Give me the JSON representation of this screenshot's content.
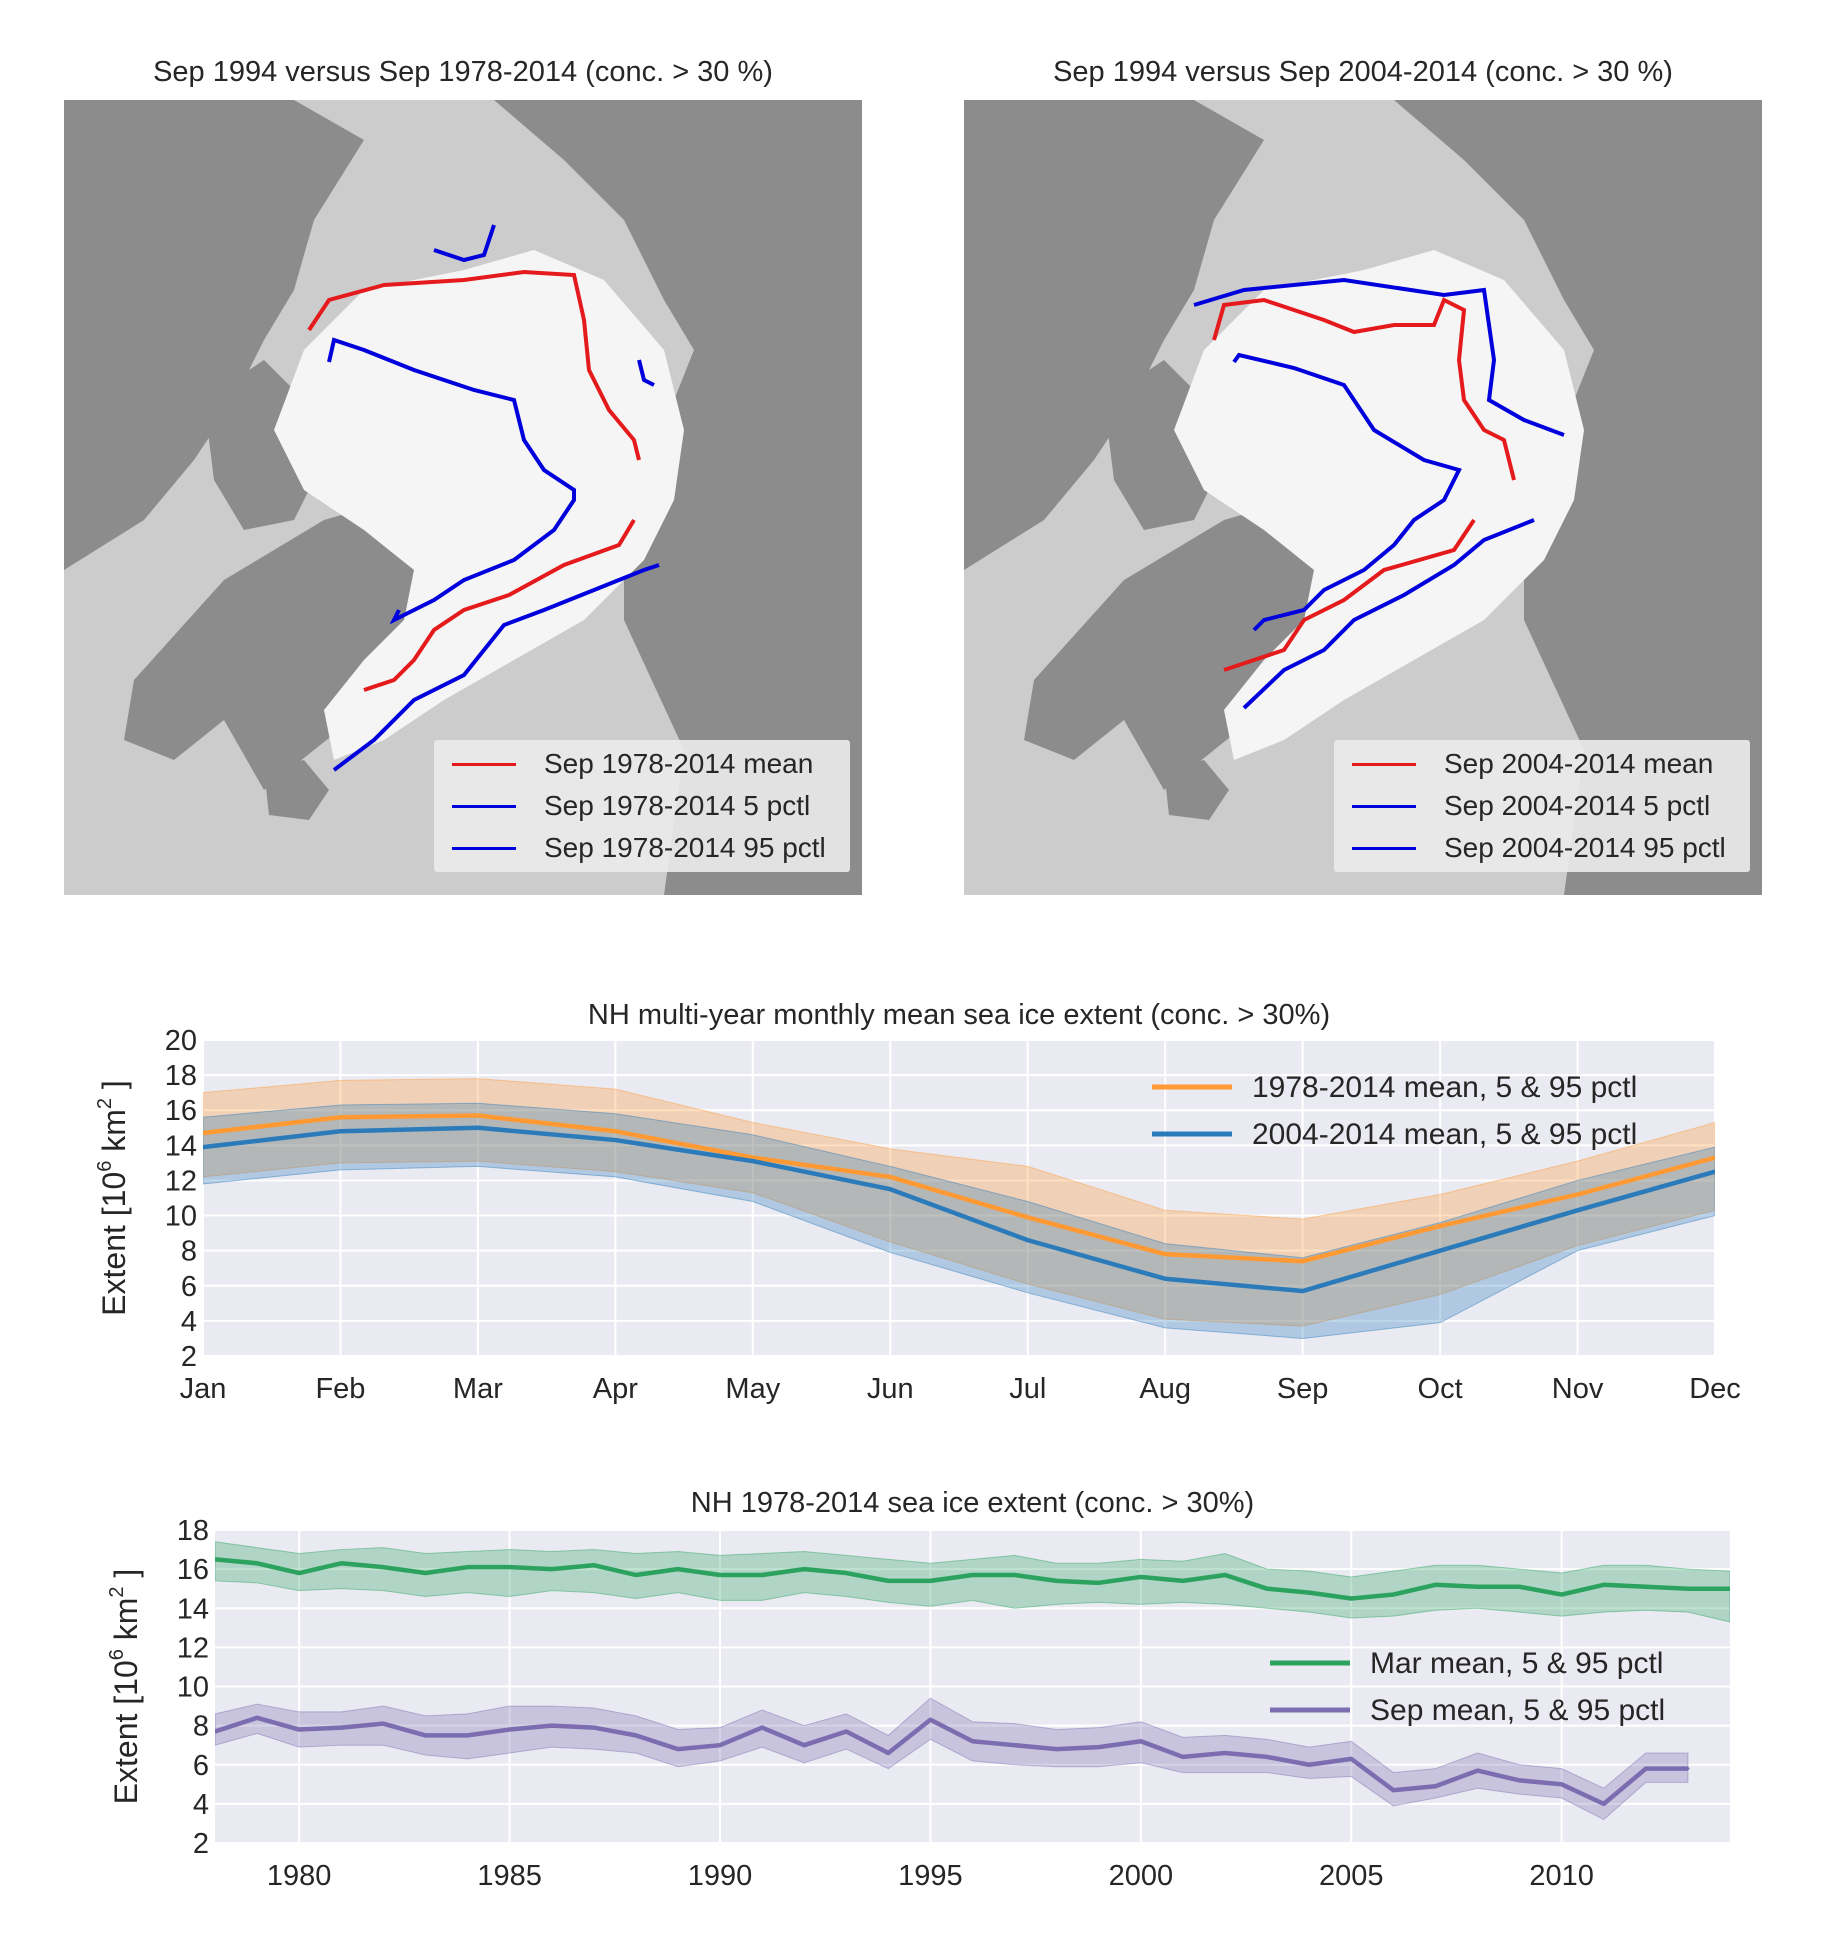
{
  "maps": [
    {
      "title": "Sep 1994 versus Sep 1978-2014 (conc. > 30 %)",
      "legend": [
        {
          "label": "Sep 1978-2014 mean",
          "color": "#e41a1c"
        },
        {
          "label": "Sep 1978-2014 5 pctl",
          "color": "#0000dd"
        },
        {
          "label": "Sep 1978-2014 95 pctl",
          "color": "#0000dd"
        }
      ]
    },
    {
      "title": "Sep 1994 versus Sep 2004-2014 (conc. > 30 %)",
      "legend": [
        {
          "label": "Sep 2004-2014 mean",
          "color": "#e41a1c"
        },
        {
          "label": "Sep 2004-2014 5 pctl",
          "color": "#0000dd"
        },
        {
          "label": "Sep 2004-2014 95 pctl",
          "color": "#0000dd"
        }
      ]
    }
  ],
  "chart_data": [
    {
      "type": "line",
      "title": "NH multi-year monthly mean sea ice extent (conc. > 30%)",
      "ylabel": "Extent [10^6 km^2 ]",
      "ylabel_parts": {
        "pre": "Extent [10",
        "exp1": "6",
        "mid": " km",
        "exp2": "2",
        "post": " ]"
      },
      "ylim": [
        2,
        20
      ],
      "yticks": [
        2,
        4,
        6,
        8,
        10,
        12,
        14,
        16,
        18,
        20
      ],
      "categories": [
        "Jan",
        "Feb",
        "Mar",
        "Apr",
        "May",
        "Jun",
        "Jul",
        "Aug",
        "Sep",
        "Oct",
        "Nov",
        "Dec"
      ],
      "grid": true,
      "legend_position": "top-right",
      "series": [
        {
          "name": "1978-2014 mean, 5 & 95 pctl",
          "color": "#ff9933",
          "values": [
            14.7,
            15.6,
            15.7,
            14.8,
            13.3,
            12.2,
            9.9,
            7.8,
            7.4,
            9.4,
            11.2,
            13.3
          ],
          "p5": [
            12.2,
            13.0,
            13.1,
            12.5,
            11.3,
            8.5,
            6.1,
            4.1,
            3.7,
            5.5,
            8.3,
            10.3
          ],
          "p95": [
            17.0,
            17.7,
            17.8,
            17.2,
            15.3,
            13.8,
            12.8,
            10.3,
            9.8,
            11.2,
            13.1,
            15.3
          ]
        },
        {
          "name": "2004-2014 mean, 5 & 95 pctl",
          "color": "#2b7bba",
          "values": [
            13.9,
            14.8,
            15.0,
            14.3,
            13.1,
            11.5,
            8.6,
            6.4,
            5.7,
            8.0,
            10.3,
            12.5
          ],
          "p5": [
            11.8,
            12.6,
            12.8,
            12.2,
            10.8,
            7.9,
            5.6,
            3.6,
            3.0,
            3.9,
            8.0,
            10.0
          ],
          "p95": [
            15.6,
            16.3,
            16.4,
            15.8,
            14.6,
            12.8,
            10.8,
            8.4,
            7.6,
            9.6,
            12.0,
            13.9
          ]
        }
      ]
    },
    {
      "type": "line",
      "title": "NH 1978-2014 sea ice extent (conc. > 30%)",
      "ylabel": "Extent [10^6 km^2 ]",
      "ylabel_parts": {
        "pre": "Extent [10",
        "exp1": "6",
        "mid": " km",
        "exp2": "2",
        "post": " ]"
      },
      "ylim": [
        2,
        18
      ],
      "yticks": [
        2,
        4,
        6,
        8,
        10,
        12,
        14,
        16,
        18
      ],
      "xlim": [
        1978,
        2014
      ],
      "xticks": [
        1980,
        1985,
        1990,
        1995,
        2000,
        2005,
        2010
      ],
      "grid": true,
      "legend_position": "center-right",
      "x": [
        1979,
        1980,
        1981,
        1982,
        1983,
        1984,
        1985,
        1986,
        1987,
        1988,
        1989,
        1990,
        1991,
        1992,
        1993,
        1994,
        1995,
        1996,
        1997,
        1998,
        1999,
        2000,
        2001,
        2002,
        2003,
        2004,
        2005,
        2006,
        2007,
        2008,
        2009,
        2010,
        2011,
        2012,
        2013
      ],
      "series": [
        {
          "name": "Mar mean, 5 & 95 pctl",
          "color": "#2ca25f",
          "x": [
            1978,
            1979,
            1980,
            1981,
            1982,
            1983,
            1984,
            1985,
            1986,
            1987,
            1988,
            1989,
            1990,
            1991,
            1992,
            1993,
            1994,
            1995,
            1996,
            1997,
            1998,
            1999,
            2000,
            2001,
            2002,
            2003,
            2004,
            2005,
            2006,
            2007,
            2008,
            2009,
            2010,
            2011,
            2012,
            2013,
            2014
          ],
          "values": [
            16.5,
            16.3,
            15.8,
            16.3,
            16.1,
            15.8,
            16.1,
            16.1,
            16.0,
            16.2,
            15.7,
            16.0,
            15.7,
            15.7,
            16.0,
            15.8,
            15.4,
            15.4,
            15.7,
            15.7,
            15.4,
            15.3,
            15.6,
            15.4,
            15.7,
            15.0,
            14.8,
            14.5,
            14.7,
            15.2,
            15.1,
            15.1,
            14.7,
            15.2,
            15.1,
            15.0,
            15.0
          ],
          "p5": [
            15.4,
            15.3,
            14.9,
            15.0,
            14.9,
            14.6,
            14.8,
            14.6,
            14.9,
            14.8,
            14.5,
            14.8,
            14.4,
            14.4,
            14.8,
            14.6,
            14.3,
            14.1,
            14.4,
            14.0,
            14.2,
            14.3,
            14.2,
            14.3,
            14.2,
            14.0,
            13.8,
            13.5,
            13.6,
            13.9,
            14.0,
            13.8,
            13.6,
            13.8,
            13.9,
            13.8,
            13.3
          ],
          "p95": [
            17.4,
            17.1,
            16.8,
            17.0,
            17.1,
            16.8,
            16.9,
            17.0,
            16.9,
            17.0,
            16.8,
            16.9,
            16.7,
            16.8,
            16.9,
            16.7,
            16.5,
            16.3,
            16.5,
            16.7,
            16.3,
            16.3,
            16.5,
            16.4,
            16.8,
            16.0,
            15.9,
            15.6,
            15.9,
            16.2,
            16.2,
            16.0,
            15.8,
            16.2,
            16.2,
            16.0,
            15.9
          ]
        },
        {
          "name": "Sep mean, 5 & 95 pctl",
          "color": "#7b6db0",
          "x": [
            1978,
            1979,
            1980,
            1981,
            1982,
            1983,
            1984,
            1985,
            1986,
            1987,
            1988,
            1989,
            1990,
            1991,
            1992,
            1993,
            1994,
            1995,
            1996,
            1997,
            1998,
            1999,
            2000,
            2001,
            2002,
            2003,
            2004,
            2005,
            2006,
            2007,
            2008,
            2009,
            2010,
            2011,
            2012,
            2013
          ],
          "values": [
            7.7,
            8.4,
            7.8,
            7.9,
            8.1,
            7.5,
            7.5,
            7.8,
            8.0,
            7.9,
            7.5,
            6.8,
            7.0,
            7.9,
            7.0,
            7.7,
            6.6,
            8.3,
            7.2,
            7.0,
            6.8,
            6.9,
            7.2,
            6.4,
            6.6,
            6.4,
            6.0,
            6.3,
            4.7,
            4.9,
            5.7,
            5.2,
            5.0,
            4.0,
            5.8,
            5.8
          ],
          "p5": [
            7.0,
            7.6,
            6.9,
            7.0,
            7.0,
            6.5,
            6.3,
            6.6,
            6.9,
            6.8,
            6.6,
            5.9,
            6.2,
            6.9,
            6.1,
            6.8,
            5.8,
            7.3,
            6.2,
            6.0,
            5.9,
            5.9,
            6.1,
            5.6,
            5.6,
            5.6,
            5.3,
            5.4,
            3.9,
            4.3,
            4.8,
            4.5,
            4.3,
            3.2,
            5.1,
            5.1
          ],
          "p95": [
            8.6,
            9.1,
            8.7,
            8.7,
            9.0,
            8.5,
            8.6,
            9.0,
            9.0,
            8.9,
            8.5,
            7.8,
            7.9,
            8.8,
            8.0,
            8.6,
            7.5,
            9.4,
            8.2,
            8.1,
            7.8,
            7.9,
            8.2,
            7.4,
            7.5,
            7.3,
            6.9,
            7.2,
            5.6,
            5.8,
            6.6,
            6.0,
            5.8,
            4.8,
            6.6,
            6.6
          ]
        }
      ]
    }
  ]
}
